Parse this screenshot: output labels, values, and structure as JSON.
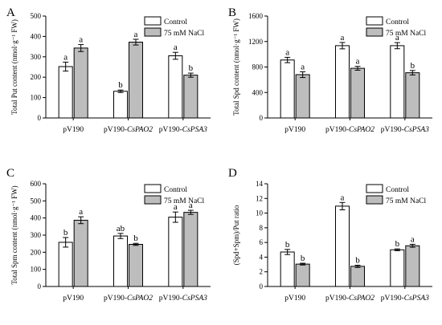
{
  "legend_entries": [
    "Control",
    "75 mM NaCl"
  ],
  "colors": {
    "control": "#ffffff",
    "nacl": "#bdbdbd",
    "stroke": "#000000"
  },
  "chart_data": [
    {
      "type": "bar",
      "panel": "A",
      "categories": [
        {
          "prefix": "pV190",
          "gene": ""
        },
        {
          "prefix": "pV190-",
          "gene": "CsPAO2"
        },
        {
          "prefix": "pV190-",
          "gene": "CsPSA3"
        }
      ],
      "ylabel": "Total Put content (nmol·g⁻¹ FW)",
      "ylim": [
        0,
        500
      ],
      "yticks": [
        0,
        100,
        200,
        300,
        400,
        500
      ],
      "series": [
        {
          "name": "Control",
          "values": [
            252,
            131,
            305
          ],
          "errors": [
            22,
            6,
            17
          ],
          "labels": [
            "a",
            "b",
            "a"
          ]
        },
        {
          "name": "75 mM NaCl",
          "values": [
            343,
            372,
            210
          ],
          "errors": [
            17,
            14,
            10
          ],
          "labels": [
            "a",
            "a",
            "b"
          ]
        }
      ]
    },
    {
      "type": "bar",
      "panel": "B",
      "categories": [
        {
          "prefix": "pV190",
          "gene": ""
        },
        {
          "prefix": "pV190-",
          "gene": "CsPAO2"
        },
        {
          "prefix": "pV190-",
          "gene": "CsPSA3"
        }
      ],
      "ylabel": "Total Spd content (nmol·g⁻¹ FW)",
      "ylim": [
        0,
        1600
      ],
      "yticks": [
        0,
        400,
        800,
        1200,
        1600
      ],
      "series": [
        {
          "name": "Control",
          "values": [
            910,
            1135,
            1135
          ],
          "errors": [
            42,
            50,
            48
          ],
          "labels": [
            "a",
            "a",
            "a"
          ]
        },
        {
          "name": "75 mM NaCl",
          "values": [
            680,
            780,
            710
          ],
          "errors": [
            45,
            30,
            35
          ],
          "labels": [
            "a",
            "a",
            "b"
          ]
        }
      ]
    },
    {
      "type": "bar",
      "panel": "C",
      "categories": [
        {
          "prefix": "pV190",
          "gene": ""
        },
        {
          "prefix": "pV190-",
          "gene": "CsPAO2"
        },
        {
          "prefix": "pV190-",
          "gene": "CsPSA3"
        }
      ],
      "ylabel": "Total Spm content (nmol·g⁻¹ FW)",
      "ylim": [
        0,
        600
      ],
      "yticks": [
        0,
        100,
        200,
        300,
        400,
        500,
        600
      ],
      "series": [
        {
          "name": "Control",
          "values": [
            258,
            295,
            405
          ],
          "errors": [
            28,
            15,
            30
          ],
          "labels": [
            "b",
            "ab",
            "a"
          ]
        },
        {
          "name": "75 mM NaCl",
          "values": [
            387,
            246,
            433
          ],
          "errors": [
            20,
            6,
            12
          ],
          "labels": [
            "a",
            "b",
            "a"
          ]
        }
      ]
    },
    {
      "type": "bar",
      "panel": "D",
      "categories": [
        {
          "prefix": "pV190",
          "gene": ""
        },
        {
          "prefix": "pV190-",
          "gene": "CsPAO2"
        },
        {
          "prefix": "pV190-",
          "gene": "CsPSA3"
        }
      ],
      "ylabel": "(Spd+Spm)/Put ratio",
      "ylim": [
        0,
        14
      ],
      "yticks": [
        0,
        2,
        4,
        6,
        8,
        10,
        12,
        14
      ],
      "series": [
        {
          "name": "Control",
          "values": [
            4.7,
            10.95,
            5.0
          ],
          "errors": [
            0.35,
            0.5,
            0.12
          ],
          "labels": [
            "b",
            "a",
            "b"
          ]
        },
        {
          "name": "75 mM NaCl",
          "values": [
            3.05,
            2.75,
            5.55
          ],
          "errors": [
            0.12,
            0.15,
            0.2
          ],
          "labels": [
            "b",
            "b",
            "a"
          ]
        }
      ]
    }
  ]
}
